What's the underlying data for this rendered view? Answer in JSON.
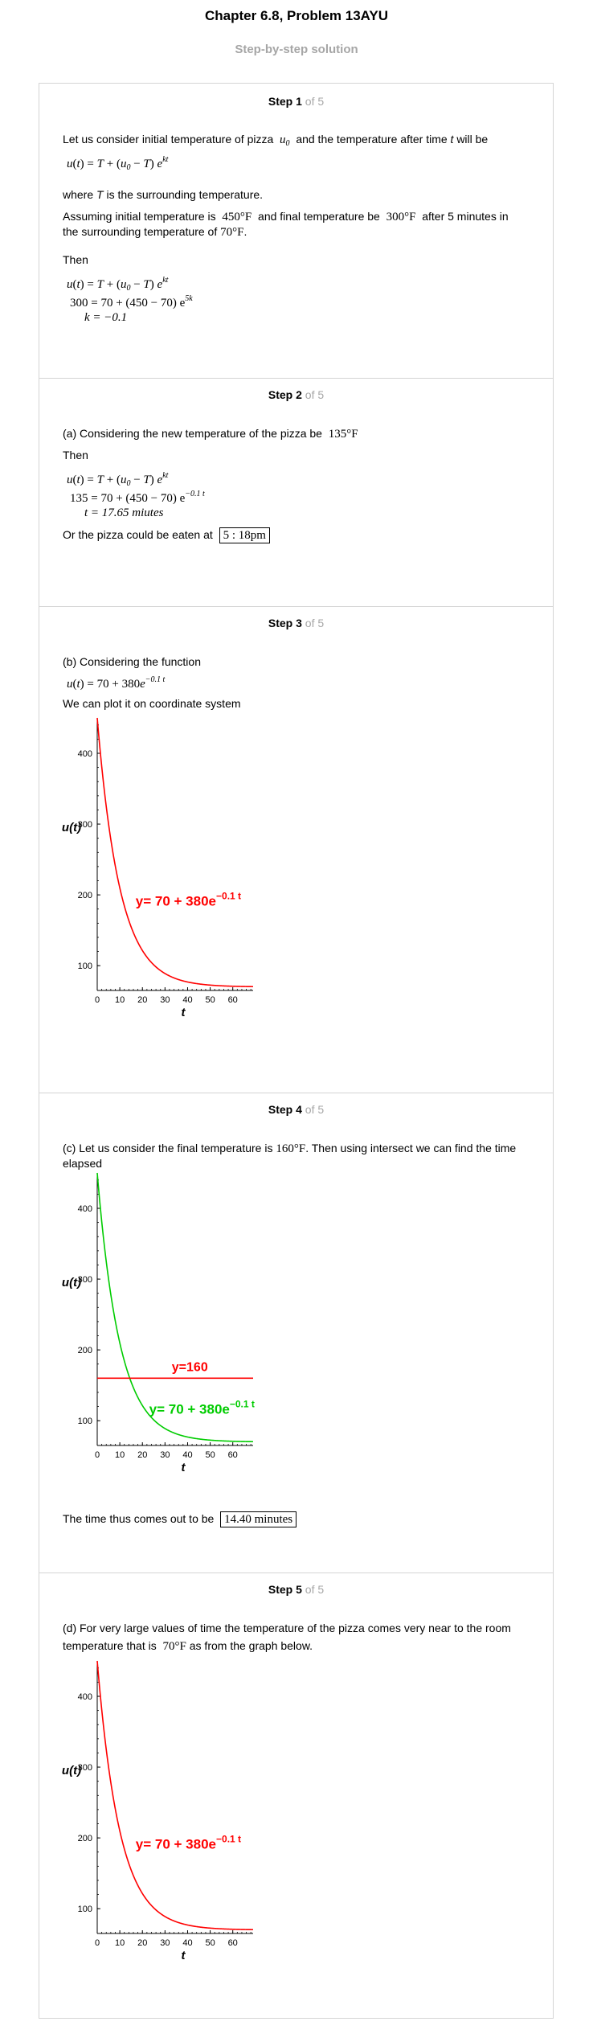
{
  "header": {
    "title": "Chapter 6.8, Problem 13AYU",
    "subtitle": "Step-by-step solution"
  },
  "step_word": "Step",
  "of_total": "of 5",
  "steps": [
    {
      "number": "1",
      "text1a": "Let us consider initial temperature of pizza",
      "text1b": "and the temperature after time",
      "text1c": "will be",
      "text2a": "where",
      "text2b": "is the surrounding temperature.",
      "text3a": "Assuming initial temperature is",
      "text3b": "and final temperature be",
      "text3c": "after 5 minutes in",
      "text4": "the surrounding temperature of",
      "then": "Then",
      "temp_initial": "450°F",
      "temp_final": "300°F",
      "temp_room": "70°F",
      "eq_300": "300 = 70 + (450 − 70)",
      "k_result": "k = −0.1"
    },
    {
      "number": "2",
      "text1": "(a) Considering the new temperature of the pizza be",
      "temp_new": "135°F",
      "then": "Then",
      "eq_135": "135 = 70 + (450 − 70)",
      "t_result": "t = 17.65 miutes",
      "text2": "Or the pizza could be eaten at",
      "answer": "5 : 18pm"
    },
    {
      "number": "3",
      "text1": "(b) Considering the function",
      "text2": "We can plot it on coordinate system"
    },
    {
      "number": "4",
      "text1a": "(c) Let us consider the final temperature is",
      "text1b": ". Then using intersect we can find the time",
      "text2": "elapsed",
      "temp": "160°F",
      "text3": "The time thus comes out to be",
      "answer": "14.40 minutes"
    },
    {
      "number": "5",
      "text1": "(d) For very large values of time the temperature of the pizza comes very near to the room",
      "text2a": "temperature that is",
      "text2b": "as from the graph below.",
      "temp": "70°F"
    }
  ],
  "chart_data": [
    {
      "type": "line",
      "xlabel": "t",
      "ylabel": "u(t)",
      "xlim": [
        0,
        69
      ],
      "ylim": [
        65,
        450
      ],
      "xticks": [
        0,
        10,
        20,
        30,
        40,
        50,
        60
      ],
      "yticks": [
        100,
        200,
        300,
        400
      ],
      "series": [
        {
          "name": "y= 70 + 380e",
          "exponent": "−0.1 t",
          "formula": {
            "a": 70,
            "b": 380,
            "k": -0.1
          },
          "color": "#ff0000"
        }
      ],
      "annotations": []
    },
    {
      "type": "line",
      "xlabel": "t",
      "ylabel": "u(t)",
      "xlim": [
        0,
        69
      ],
      "ylim": [
        65,
        450
      ],
      "xticks": [
        0,
        10,
        20,
        30,
        40,
        50,
        60
      ],
      "yticks": [
        100,
        200,
        300,
        400
      ],
      "series": [
        {
          "name": "y= 70 + 380e",
          "exponent": "−0.1 t",
          "formula": {
            "a": 70,
            "b": 380,
            "k": -0.1
          },
          "color": "#00cc00"
        },
        {
          "name": "y=160",
          "constant": 160,
          "color": "#ff0000"
        }
      ]
    },
    {
      "type": "line",
      "xlabel": "t",
      "ylabel": "u(t)",
      "xlim": [
        0,
        69
      ],
      "ylim": [
        65,
        450
      ],
      "xticks": [
        0,
        10,
        20,
        30,
        40,
        50,
        60
      ],
      "yticks": [
        100,
        200,
        300,
        400
      ],
      "series": [
        {
          "name": "y= 70 + 380e",
          "exponent": "−0.1 t",
          "formula": {
            "a": 70,
            "b": 380,
            "k": -0.1
          },
          "color": "#ff0000"
        }
      ]
    }
  ]
}
